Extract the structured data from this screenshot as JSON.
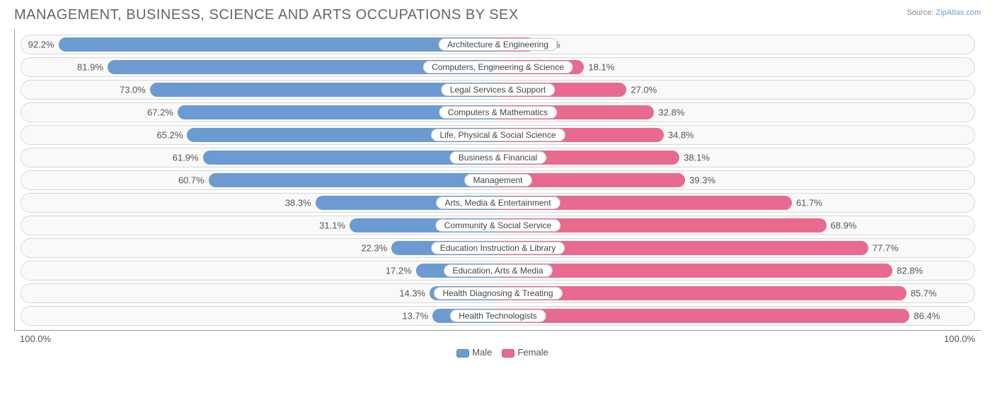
{
  "title": "MANAGEMENT, BUSINESS, SCIENCE AND ARTS OCCUPATIONS BY SEX",
  "source": {
    "label": "Source:",
    "name": "ZipAtlas.com"
  },
  "chart": {
    "type": "diverging-bar",
    "axis": {
      "left_label": "100.0%",
      "right_label": "100.0%",
      "max_pct": 100.0
    },
    "colors": {
      "male": "#6b9bd1",
      "female": "#e86a8e",
      "track_bg": "#f9f9f9",
      "track_border": "#d8d8d8",
      "text": "#555555",
      "title_color": "#666666",
      "pill_bg": "#ffffff",
      "pill_border": "#cccccc"
    },
    "legend": [
      {
        "label": "Male",
        "color": "#6b9bd1"
      },
      {
        "label": "Female",
        "color": "#e86a8e"
      }
    ],
    "label_fontsize": 13,
    "category_fontsize": 12,
    "title_fontsize": 20,
    "rows": [
      {
        "category": "Architecture & Engineering",
        "male": 92.2,
        "female": 7.8
      },
      {
        "category": "Computers, Engineering & Science",
        "male": 81.9,
        "female": 18.1
      },
      {
        "category": "Legal Services & Support",
        "male": 73.0,
        "female": 27.0
      },
      {
        "category": "Computers & Mathematics",
        "male": 67.2,
        "female": 32.8
      },
      {
        "category": "Life, Physical & Social Science",
        "male": 65.2,
        "female": 34.8
      },
      {
        "category": "Business & Financial",
        "male": 61.9,
        "female": 38.1
      },
      {
        "category": "Management",
        "male": 60.7,
        "female": 39.3
      },
      {
        "category": "Arts, Media & Entertainment",
        "male": 38.3,
        "female": 61.7
      },
      {
        "category": "Community & Social Service",
        "male": 31.1,
        "female": 68.9
      },
      {
        "category": "Education Instruction & Library",
        "male": 22.3,
        "female": 77.7
      },
      {
        "category": "Education, Arts & Media",
        "male": 17.2,
        "female": 82.8
      },
      {
        "category": "Health Diagnosing & Treating",
        "male": 14.3,
        "female": 85.7
      },
      {
        "category": "Health Technologists",
        "male": 13.7,
        "female": 86.4
      }
    ]
  }
}
